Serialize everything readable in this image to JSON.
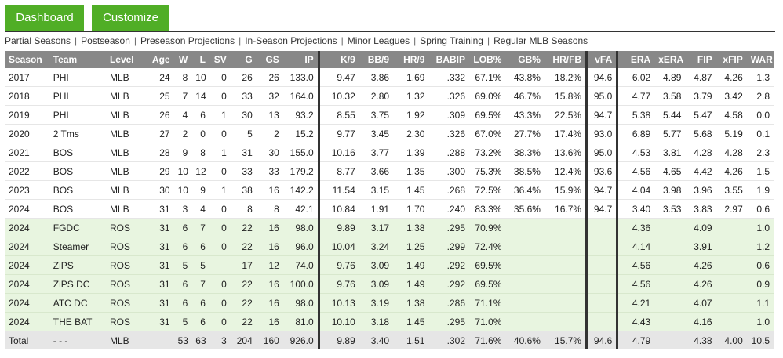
{
  "buttons": {
    "dashboard": "Dashboard",
    "customize": "Customize"
  },
  "subnav": [
    "Partial Seasons",
    "Postseason",
    "Preseason Projections",
    "In-Season Projections",
    "Minor Leagues",
    "Spring Training",
    "Regular MLB Seasons"
  ],
  "columns": [
    "Season",
    "Team",
    "Level",
    "Age",
    "W",
    "L",
    "SV",
    "G",
    "GS",
    "IP",
    "K/9",
    "BB/9",
    "HR/9",
    "BABIP",
    "LOB%",
    "GB%",
    "HR/FB",
    "vFA",
    "ERA",
    "xERA",
    "FIP",
    "xFIP",
    "WAR"
  ],
  "rows": [
    {
      "type": "mlb",
      "cells": [
        "2017",
        "PHI",
        "MLB",
        "24",
        "8",
        "10",
        "0",
        "26",
        "26",
        "133.0",
        "9.47",
        "3.86",
        "1.69",
        ".332",
        "67.1%",
        "43.8%",
        "18.2%",
        "94.6",
        "6.02",
        "4.89",
        "4.87",
        "4.26",
        "1.3"
      ]
    },
    {
      "type": "mlb",
      "cells": [
        "2018",
        "PHI",
        "MLB",
        "25",
        "7",
        "14",
        "0",
        "33",
        "32",
        "164.0",
        "10.32",
        "2.80",
        "1.32",
        ".326",
        "69.0%",
        "46.7%",
        "15.8%",
        "95.0",
        "4.77",
        "3.58",
        "3.79",
        "3.42",
        "2.8"
      ]
    },
    {
      "type": "mlb",
      "cells": [
        "2019",
        "PHI",
        "MLB",
        "26",
        "4",
        "6",
        "1",
        "30",
        "13",
        "93.2",
        "8.55",
        "3.75",
        "1.92",
        ".309",
        "69.5%",
        "43.3%",
        "22.5%",
        "94.7",
        "5.38",
        "5.44",
        "5.47",
        "4.58",
        "0.0"
      ]
    },
    {
      "type": "mlb",
      "cells": [
        "2020",
        "2 Tms",
        "MLB",
        "27",
        "2",
        "0",
        "0",
        "5",
        "2",
        "15.2",
        "9.77",
        "3.45",
        "2.30",
        ".326",
        "67.0%",
        "27.7%",
        "17.4%",
        "93.0",
        "6.89",
        "5.77",
        "5.68",
        "5.19",
        "0.1"
      ]
    },
    {
      "type": "mlb",
      "cells": [
        "2021",
        "BOS",
        "MLB",
        "28",
        "9",
        "8",
        "1",
        "31",
        "30",
        "155.0",
        "10.16",
        "3.77",
        "1.39",
        ".288",
        "73.2%",
        "38.3%",
        "13.6%",
        "95.0",
        "4.53",
        "3.81",
        "4.28",
        "4.28",
        "2.3"
      ]
    },
    {
      "type": "mlb",
      "cells": [
        "2022",
        "BOS",
        "MLB",
        "29",
        "10",
        "12",
        "0",
        "33",
        "33",
        "179.2",
        "8.77",
        "3.66",
        "1.35",
        ".300",
        "75.3%",
        "38.5%",
        "12.4%",
        "93.6",
        "4.56",
        "4.65",
        "4.42",
        "4.26",
        "1.5"
      ]
    },
    {
      "type": "mlb",
      "cells": [
        "2023",
        "BOS",
        "MLB",
        "30",
        "10",
        "9",
        "1",
        "38",
        "16",
        "142.2",
        "11.54",
        "3.15",
        "1.45",
        ".268",
        "72.5%",
        "36.4%",
        "15.9%",
        "94.7",
        "4.04",
        "3.98",
        "3.96",
        "3.55",
        "1.9"
      ]
    },
    {
      "type": "mlb",
      "cells": [
        "2024",
        "BOS",
        "MLB",
        "31",
        "3",
        "4",
        "0",
        "8",
        "8",
        "42.1",
        "10.84",
        "1.91",
        "1.70",
        ".240",
        "83.3%",
        "35.6%",
        "16.7%",
        "94.7",
        "3.40",
        "3.53",
        "3.83",
        "2.97",
        "0.6"
      ]
    },
    {
      "type": "ros",
      "cells": [
        "2024",
        "FGDC",
        "ROS",
        "31",
        "6",
        "7",
        "0",
        "22",
        "16",
        "98.0",
        "9.89",
        "3.17",
        "1.38",
        ".295",
        "70.9%",
        "",
        "",
        "",
        "4.36",
        "",
        "4.09",
        "",
        "1.0"
      ]
    },
    {
      "type": "ros",
      "cells": [
        "2024",
        "Steamer",
        "ROS",
        "31",
        "6",
        "6",
        "0",
        "22",
        "16",
        "96.0",
        "10.04",
        "3.24",
        "1.25",
        ".299",
        "72.4%",
        "",
        "",
        "",
        "4.14",
        "",
        "3.91",
        "",
        "1.2"
      ]
    },
    {
      "type": "ros",
      "cells": [
        "2024",
        "ZiPS",
        "ROS",
        "31",
        "5",
        "5",
        "",
        "17",
        "12",
        "74.0",
        "9.76",
        "3.09",
        "1.49",
        ".292",
        "69.5%",
        "",
        "",
        "",
        "4.56",
        "",
        "4.26",
        "",
        "0.6"
      ]
    },
    {
      "type": "ros",
      "cells": [
        "2024",
        "ZiPS DC",
        "ROS",
        "31",
        "6",
        "7",
        "0",
        "22",
        "16",
        "100.0",
        "9.76",
        "3.09",
        "1.49",
        ".292",
        "69.5%",
        "",
        "",
        "",
        "4.56",
        "",
        "4.26",
        "",
        "0.9"
      ]
    },
    {
      "type": "ros",
      "cells": [
        "2024",
        "ATC DC",
        "ROS",
        "31",
        "6",
        "6",
        "0",
        "22",
        "16",
        "98.0",
        "10.13",
        "3.19",
        "1.38",
        ".286",
        "71.1%",
        "",
        "",
        "",
        "4.21",
        "",
        "4.07",
        "",
        "1.1"
      ]
    },
    {
      "type": "ros",
      "cells": [
        "2024",
        "THE BAT",
        "ROS",
        "31",
        "5",
        "6",
        "0",
        "22",
        "16",
        "81.0",
        "10.10",
        "3.18",
        "1.45",
        ".295",
        "71.0%",
        "",
        "",
        "",
        "4.43",
        "",
        "4.16",
        "",
        "1.0"
      ]
    },
    {
      "type": "total",
      "cells": [
        "Total",
        "- - -",
        "MLB",
        "",
        "53",
        "63",
        "3",
        "204",
        "160",
        "926.0",
        "9.89",
        "3.40",
        "1.51",
        ".302",
        "71.6%",
        "40.6%",
        "15.7%",
        "94.6",
        "4.79",
        "",
        "4.38",
        "4.00",
        "10.5"
      ]
    }
  ],
  "colors": {
    "accent": "#50ae26",
    "header_bg": "#888888",
    "projection_row_bg": "#e8f5e0",
    "total_row_bg": "#e6e6e6"
  }
}
